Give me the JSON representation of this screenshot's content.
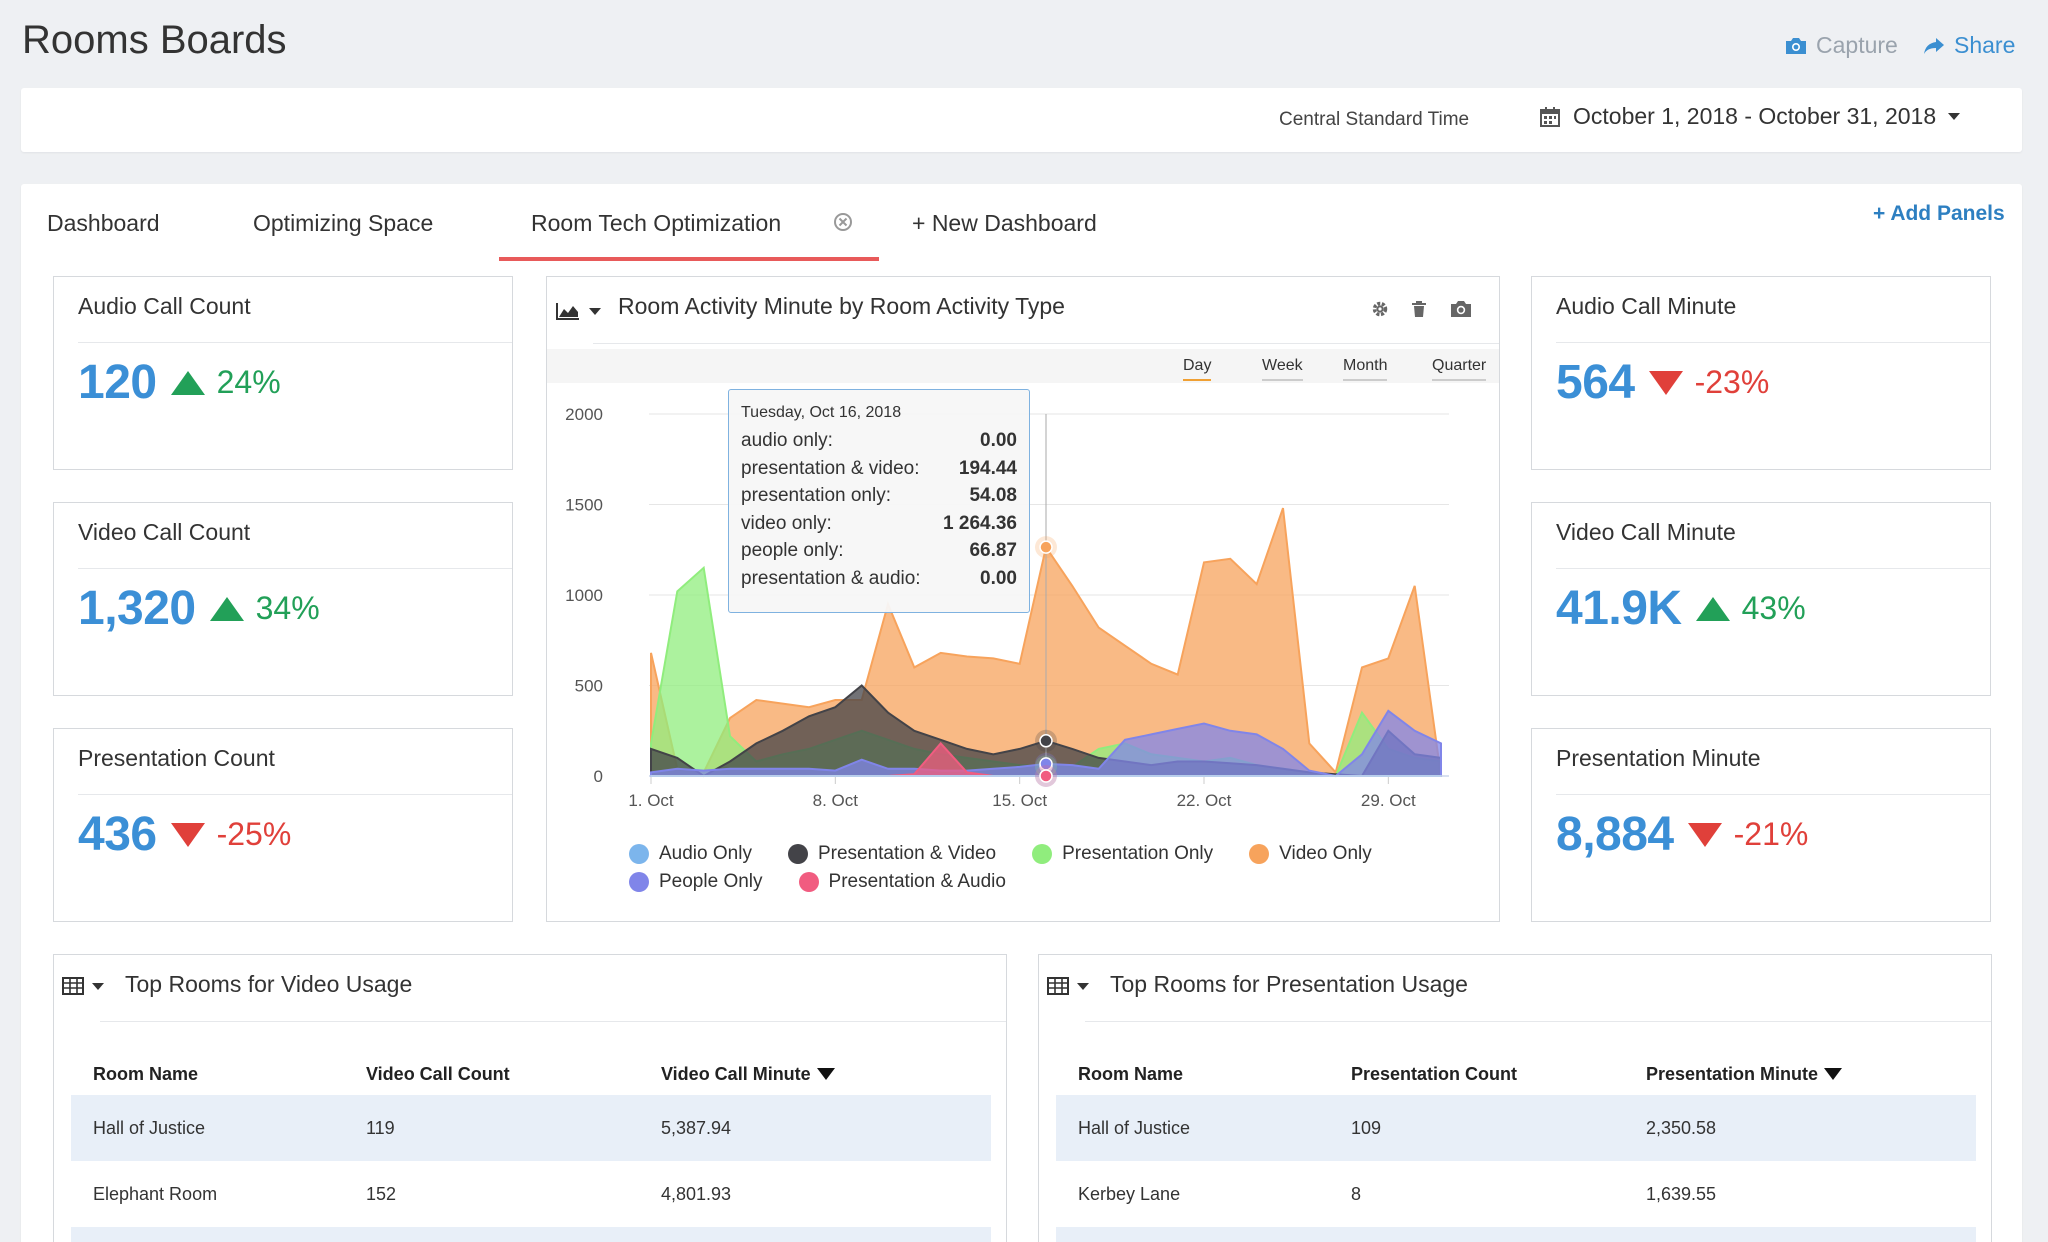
{
  "header": {
    "title": "Rooms Boards",
    "capture_label": "Capture",
    "share_label": "Share"
  },
  "filters": {
    "timezone": "Central Standard Time",
    "date_range": "October 1, 2018 - October 31, 2018"
  },
  "tabs": [
    {
      "label": "Dashboard"
    },
    {
      "label": "Optimizing Space"
    },
    {
      "label": "Room Tech Optimization",
      "active": true
    },
    {
      "label": "+ New Dashboard"
    }
  ],
  "add_panels_label": "+ Add Panels",
  "kpis": {
    "audio_call_count": {
      "title": "Audio Call Count",
      "value": "120",
      "change": "24%",
      "direction": "up"
    },
    "video_call_count": {
      "title": "Video Call Count",
      "value": "1,320",
      "change": "34%",
      "direction": "up"
    },
    "presentation_count": {
      "title": "Presentation Count",
      "value": "436",
      "change": "-25%",
      "direction": "down"
    },
    "audio_call_minute": {
      "title": "Audio Call Minute",
      "value": "564",
      "change": "-23%",
      "direction": "down"
    },
    "video_call_minute": {
      "title": "Video Call Minute",
      "value": "41.9K",
      "change": "43%",
      "direction": "up"
    },
    "presentation_minute": {
      "title": "Presentation Minute",
      "value": "8,884",
      "change": "-21%",
      "direction": "down"
    }
  },
  "chart_panel": {
    "title": "Room Activity Minute by Room Activity Type",
    "ranges": [
      "Day",
      "Week",
      "Month",
      "Quarter"
    ],
    "active_range": "Day",
    "tooltip": {
      "date": "Tuesday, Oct 16, 2018",
      "rows": [
        {
          "label": "audio only:",
          "value": "0.00"
        },
        {
          "label": "presentation & video:",
          "value": "194.44"
        },
        {
          "label": "presentation only:",
          "value": "54.08"
        },
        {
          "label": "video only:",
          "value": "1 264.36"
        },
        {
          "label": "people only:",
          "value": "66.87"
        },
        {
          "label": "presentation & audio:",
          "value": "0.00"
        }
      ]
    }
  },
  "chart_data": {
    "type": "area",
    "x": [
      "2018-10-01",
      "2018-10-02",
      "2018-10-03",
      "2018-10-04",
      "2018-10-05",
      "2018-10-06",
      "2018-10-07",
      "2018-10-08",
      "2018-10-09",
      "2018-10-10",
      "2018-10-11",
      "2018-10-12",
      "2018-10-13",
      "2018-10-14",
      "2018-10-15",
      "2018-10-16",
      "2018-10-17",
      "2018-10-18",
      "2018-10-19",
      "2018-10-20",
      "2018-10-21",
      "2018-10-22",
      "2018-10-23",
      "2018-10-24",
      "2018-10-25",
      "2018-10-26",
      "2018-10-27",
      "2018-10-28",
      "2018-10-29",
      "2018-10-30",
      "2018-10-31"
    ],
    "yticks": [
      0,
      500,
      1000,
      1500,
      2000
    ],
    "ylim": [
      0,
      2000
    ],
    "xticks": [
      "1. Oct",
      "8. Oct",
      "15. Oct",
      "22. Oct",
      "29. Oct"
    ],
    "series": [
      {
        "name": "Audio Only",
        "color": "#7cb5ec",
        "values": [
          0,
          0,
          0,
          0,
          0,
          0,
          0,
          0,
          0,
          0,
          0,
          0,
          0,
          0,
          0,
          0,
          0,
          0,
          0,
          0,
          0,
          0,
          0,
          0,
          0,
          0,
          0,
          0,
          0,
          0,
          0
        ]
      },
      {
        "name": "Presentation & Video",
        "color": "#434348",
        "values": [
          150,
          100,
          0,
          80,
          180,
          250,
          330,
          380,
          500,
          350,
          250,
          200,
          150,
          120,
          150,
          194.44,
          150,
          100,
          80,
          60,
          80,
          80,
          70,
          60,
          40,
          20,
          10,
          0,
          250,
          120,
          100
        ]
      },
      {
        "name": "Presentation Only",
        "color": "#90ed7d",
        "values": [
          180,
          1020,
          1150,
          220,
          80,
          120,
          150,
          200,
          250,
          200,
          150,
          120,
          100,
          80,
          60,
          54.08,
          50,
          150,
          180,
          120,
          100,
          80,
          100,
          60,
          40,
          20,
          0,
          350,
          150,
          100,
          80
        ]
      },
      {
        "name": "Video Only",
        "color": "#f7a35c",
        "values": [
          680,
          40,
          20,
          320,
          420,
          400,
          380,
          420,
          420,
          950,
          600,
          680,
          660,
          650,
          620,
          1264.36,
          1050,
          820,
          720,
          620,
          560,
          1180,
          1200,
          1060,
          1480,
          180,
          20,
          600,
          650,
          1050,
          0
        ]
      },
      {
        "name": "People Only",
        "color": "#8085e9",
        "values": [
          20,
          40,
          30,
          40,
          40,
          40,
          40,
          30,
          90,
          40,
          40,
          30,
          30,
          40,
          50,
          66.87,
          60,
          40,
          200,
          230,
          260,
          290,
          250,
          230,
          150,
          30,
          0,
          120,
          360,
          250,
          180
        ]
      },
      {
        "name": "Presentation & Audio",
        "color": "#f15c80",
        "values": [
          0,
          0,
          0,
          0,
          0,
          0,
          0,
          0,
          0,
          0,
          10,
          180,
          20,
          0,
          0,
          0,
          0,
          0,
          0,
          0,
          0,
          0,
          0,
          0,
          0,
          0,
          0,
          0,
          0,
          0,
          0
        ]
      }
    ]
  },
  "tables": {
    "video": {
      "title": "Top Rooms for Video Usage",
      "columns": [
        "Room Name",
        "Video Call Count",
        "Video Call Minute"
      ],
      "rows": [
        [
          "Hall of Justice",
          "119",
          "5,387.94"
        ],
        [
          "Elephant Room",
          "152",
          "4,801.93"
        ]
      ]
    },
    "presentation": {
      "title": "Top Rooms for Presentation Usage",
      "columns": [
        "Room Name",
        "Presentation Count",
        "Presentation Minute"
      ],
      "rows": [
        [
          "Hall of Justice",
          "109",
          "2,350.58"
        ],
        [
          "Kerbey Lane",
          "8",
          "1,639.55"
        ]
      ]
    }
  }
}
